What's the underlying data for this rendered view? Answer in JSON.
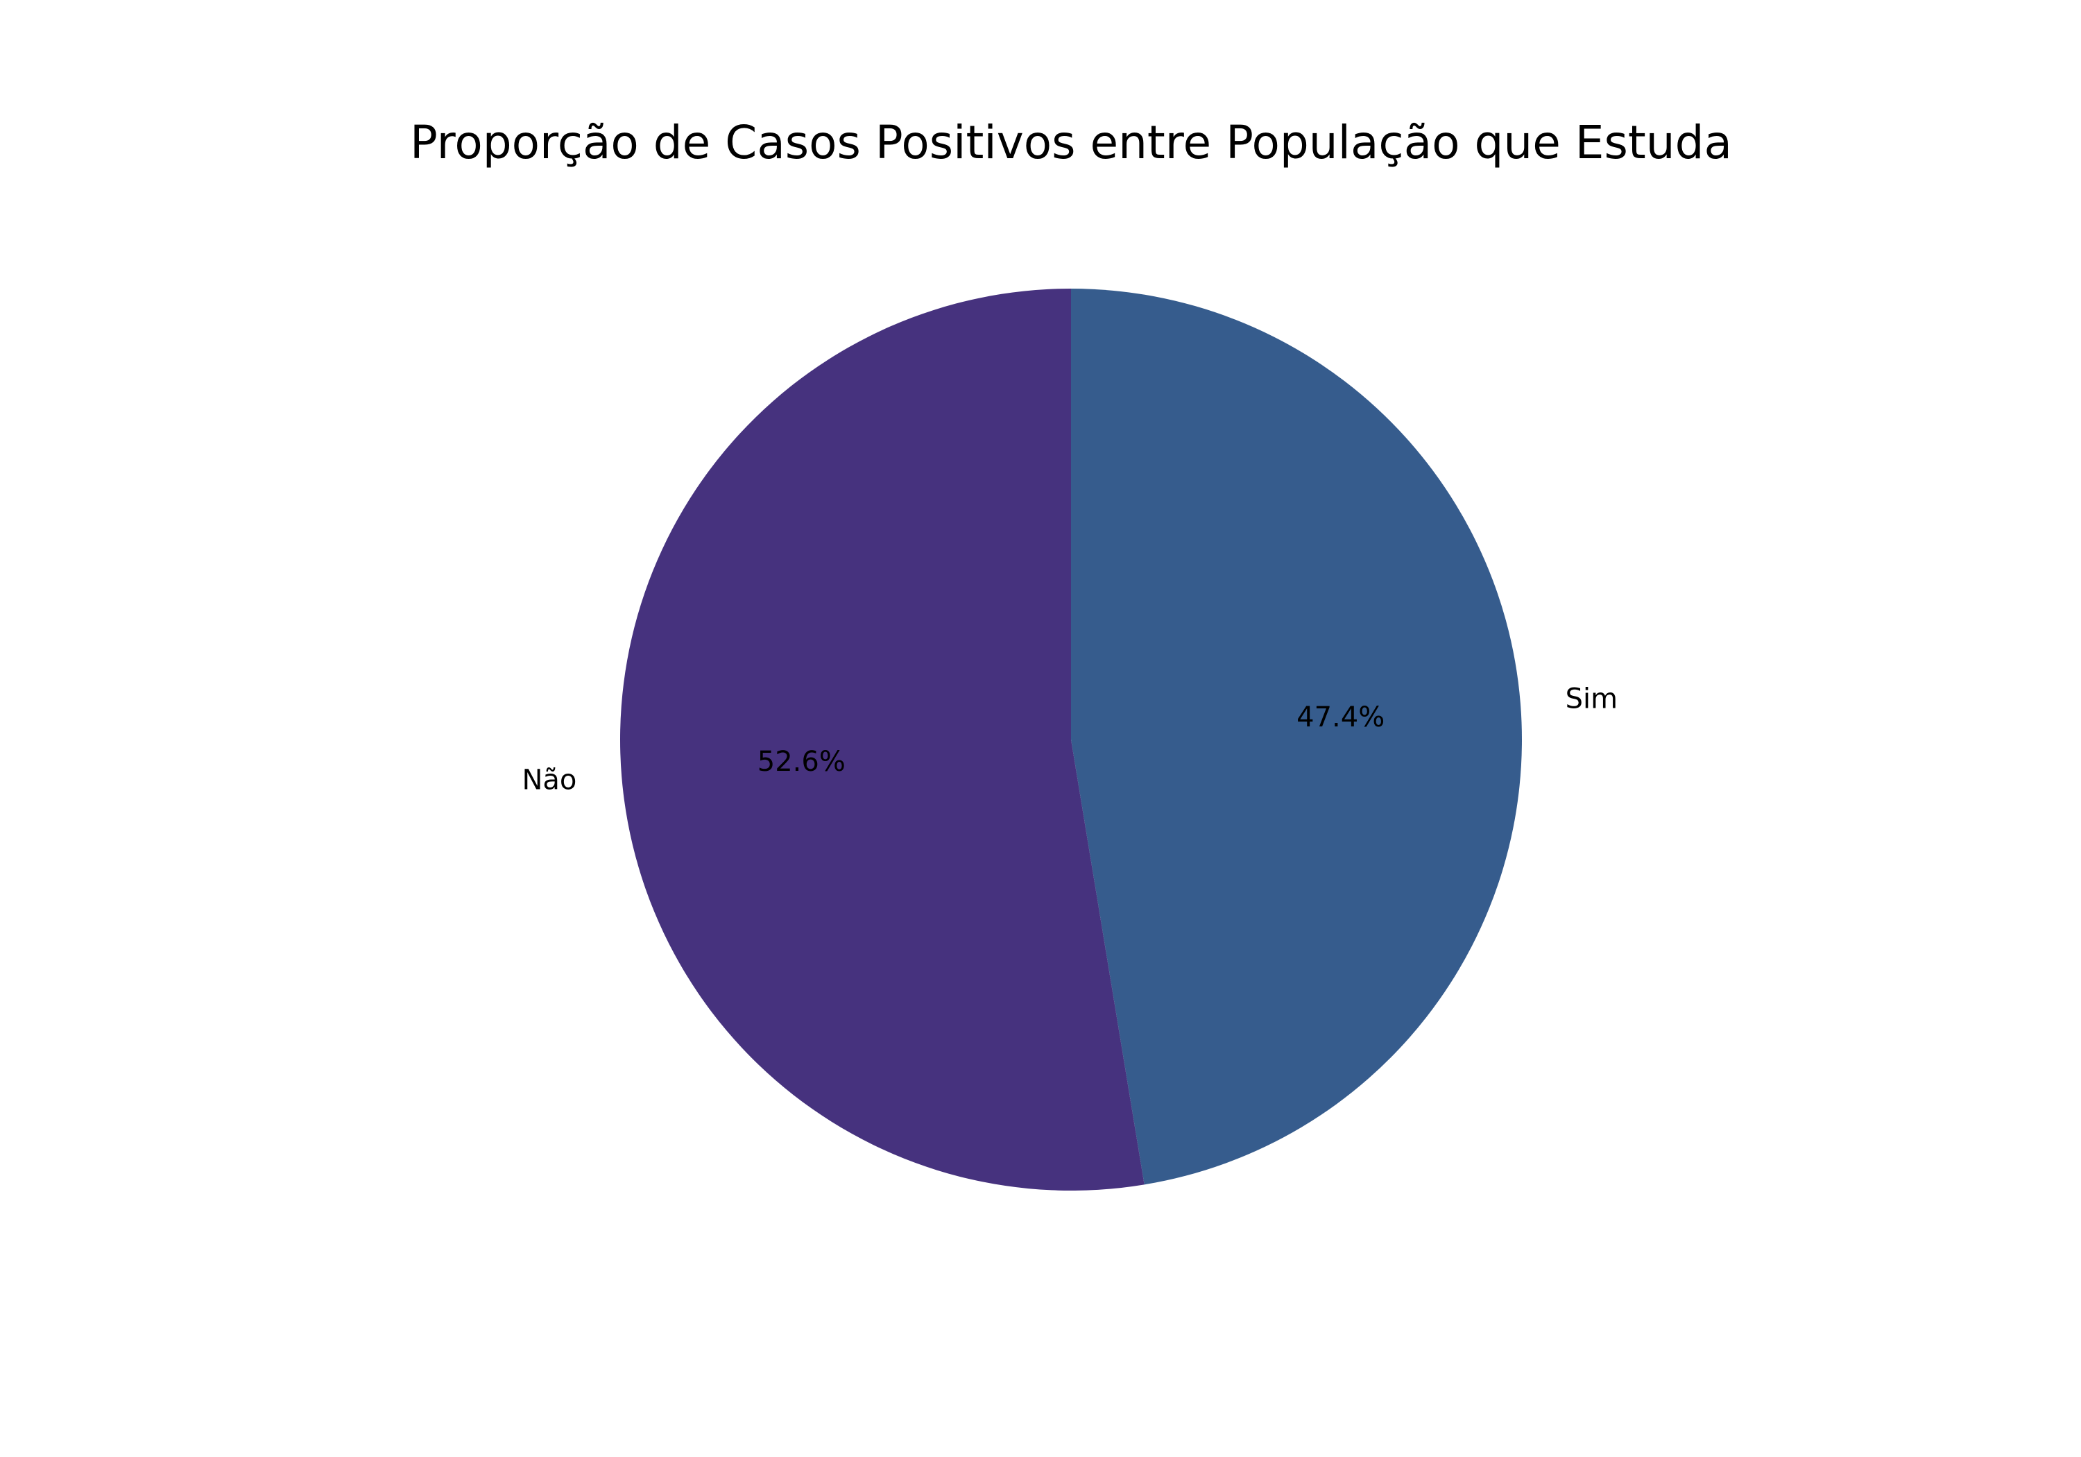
{
  "chart_data": {
    "type": "pie",
    "title": "Proporção de Casos Positivos entre População que Estuda",
    "slices": [
      {
        "label": "Sim",
        "value": 47.4,
        "pct_label": "47.4%",
        "color": "#365c8d"
      },
      {
        "label": "Não",
        "value": 52.6,
        "pct_label": "52.6%",
        "color": "#46327e"
      }
    ],
    "start_angle_deg": 90,
    "direction": "clockwise",
    "legend": "none"
  }
}
